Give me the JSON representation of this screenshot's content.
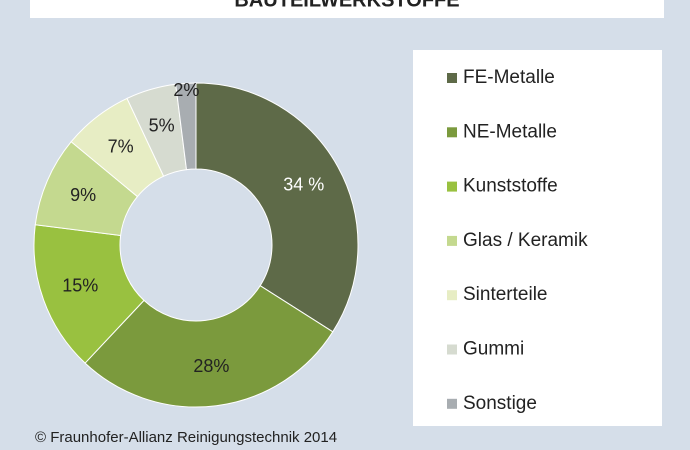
{
  "chart_data": {
    "type": "donut",
    "title": "BAUTEILWERKSTOFFE",
    "categories": [
      "FE-Metalle",
      "NE-Metalle",
      "Kunststoffe",
      "Glas / Keramik",
      "Sinterteile",
      "Gummi",
      "Sonstige"
    ],
    "values": [
      34,
      28,
      15,
      9,
      7,
      5,
      2
    ],
    "value_labels": [
      "34 %",
      "28%",
      "15%",
      "9%",
      "7%",
      "5%",
      "2%"
    ],
    "colors": [
      "#5e6a48",
      "#7b9a3d",
      "#99c140",
      "#c4d98f",
      "#e7edc4",
      "#d6dbd0",
      "#a8adb1"
    ],
    "legend": "right",
    "source": "© Fraunhofer-Allianz Reinigungstechnik 2014"
  }
}
